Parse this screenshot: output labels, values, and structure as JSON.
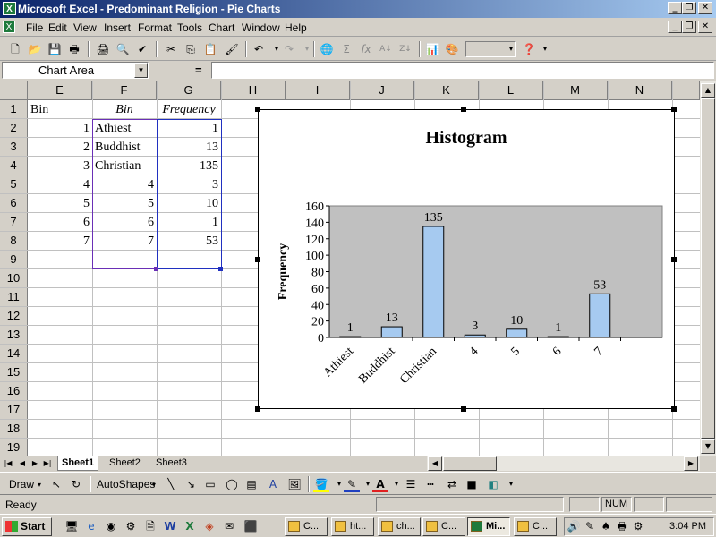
{
  "window": {
    "title": "Microsoft Excel - Predominant Religion - Pie Charts",
    "min_label": "_",
    "max_label": "❐",
    "close_label": "✕"
  },
  "menu": [
    "File",
    "Edit",
    "View",
    "Insert",
    "Format",
    "Tools",
    "Chart",
    "Window",
    "Help"
  ],
  "formula_bar": {
    "name_box": "Chart Area",
    "equals": "=",
    "formula": ""
  },
  "grid": {
    "columns": [
      "E",
      "F",
      "G",
      "H",
      "I",
      "J",
      "K",
      "L",
      "M",
      "N"
    ],
    "rows": [
      "1",
      "2",
      "3",
      "4",
      "5",
      "6",
      "7",
      "8",
      "9",
      "10",
      "11",
      "12",
      "13",
      "14",
      "15",
      "16",
      "17",
      "18",
      "19"
    ],
    "cells": {
      "E1": "Bin",
      "F1": "Bin",
      "G1": "Frequency",
      "E": [
        "1",
        "2",
        "3",
        "4",
        "5",
        "6",
        "7"
      ],
      "F": [
        "Athiest",
        "Buddhist",
        "Christian",
        "4",
        "5",
        "6",
        "7"
      ],
      "G": [
        "1",
        "13",
        "135",
        "3",
        "10",
        "1",
        "53"
      ]
    }
  },
  "chart_data": {
    "type": "bar",
    "title": "Histogram",
    "xlabel": "",
    "ylabel": "Frequency",
    "categories": [
      "Athiest",
      "Buddhist",
      "Christian",
      "4",
      "5",
      "6",
      "7"
    ],
    "values": [
      1,
      13,
      135,
      3,
      10,
      1,
      53
    ],
    "data_labels": [
      "1",
      "13",
      "135",
      "3",
      "10",
      "1",
      "53"
    ],
    "ylim": [
      0,
      160
    ],
    "yticks": [
      "0",
      "20",
      "40",
      "60",
      "80",
      "100",
      "120",
      "140",
      "160"
    ],
    "plot_bg": "#c0c0c0",
    "bar_color": "#a6caf0",
    "grid": false,
    "legend": "none"
  },
  "sheet_tabs": [
    "Sheet1",
    "Sheet2",
    "Sheet3"
  ],
  "drawing_toolbar": {
    "draw": "Draw",
    "autoshapes": "AutoShapes"
  },
  "status": {
    "ready": "Ready",
    "num": "NUM"
  },
  "taskbar": {
    "start": "Start",
    "tasks": [
      "C...",
      "ht...",
      "ch...",
      "C...",
      "Mi...",
      "C..."
    ],
    "clock": "3:04 PM"
  },
  "colors": {
    "titlebar_start": "#0a246a",
    "titlebar_end": "#a6caf0",
    "selection_border": "#6a2fb6"
  }
}
